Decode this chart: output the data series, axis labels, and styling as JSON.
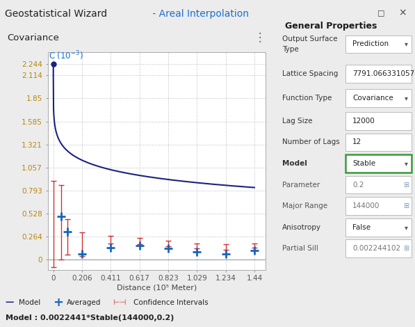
{
  "title_left": "Geostatistical Wizard",
  "title_right": " - Areal Interpolation",
  "panel_title": "Covariance",
  "xlabel": "Distance (10⁵ Meter)",
  "yticks": [
    0,
    0.264,
    0.528,
    0.793,
    1.057,
    1.321,
    1.585,
    1.85,
    2.114,
    2.244
  ],
  "xticks": [
    0,
    0.206,
    0.411,
    0.617,
    0.823,
    1.029,
    1.234,
    1.44
  ],
  "ylim": [
    -0.12,
    2.38
  ],
  "xlim": [
    -0.04,
    1.52
  ],
  "model_formula": "Model : 0.0022441*Stable(144000,0.2)",
  "partial_sill": 2.2441,
  "major_range": 1.44,
  "param": 0.2,
  "bg_color": "#ececec",
  "plot_bg_color": "#ffffff",
  "grid_color": "#b0b8c0",
  "model_color": "#1a237e",
  "averaged_color": "#1565c0",
  "ci_color": "#d32f2f",
  "title_color_left": "#222222",
  "title_color_right": "#1a6fce",
  "ytick_color": "#b8860b",
  "xtick_color": "#555555",
  "averaged_x": [
    0.055,
    0.103,
    0.206,
    0.411,
    0.617,
    0.823,
    1.029,
    1.234,
    1.44
  ],
  "averaged_y": [
    0.49,
    0.32,
    0.06,
    0.135,
    0.155,
    0.125,
    0.085,
    0.065,
    0.105
  ],
  "ci_x": [
    0.0,
    0.055,
    0.103,
    0.206,
    0.411,
    0.617,
    0.823,
    1.029,
    1.234,
    1.44
  ],
  "ci_low": [
    -0.09,
    0.0,
    0.05,
    0.04,
    0.18,
    0.175,
    0.15,
    0.125,
    0.11,
    0.135
  ],
  "ci_high": [
    0.9,
    0.85,
    0.46,
    0.31,
    0.27,
    0.245,
    0.215,
    0.185,
    0.175,
    0.18
  ],
  "right_panel_title": "General Properties",
  "right_rows": [
    {
      "label": "Output Surface\nType",
      "value": "Prediction",
      "dropdown": true,
      "highlight": false,
      "greyed": false
    },
    {
      "label": "Lattice Spacing",
      "value": "7791.066331057",
      "dropdown": false,
      "highlight": false,
      "greyed": false
    },
    {
      "label": "Function Type",
      "value": "Covariance",
      "dropdown": true,
      "highlight": false,
      "greyed": false
    },
    {
      "label": "Lag Size",
      "value": "12000",
      "dropdown": false,
      "highlight": false,
      "greyed": false
    },
    {
      "label": "Number of Lags",
      "value": "12",
      "dropdown": false,
      "highlight": false,
      "greyed": false
    },
    {
      "label": "Model",
      "value": "Stable",
      "dropdown": true,
      "highlight": true,
      "greyed": false
    },
    {
      "label": "Parameter",
      "value": "0.2",
      "dropdown": false,
      "highlight": false,
      "greyed": true,
      "has_icon": true
    },
    {
      "label": "Major Range",
      "value": "144000",
      "dropdown": false,
      "highlight": false,
      "greyed": true,
      "has_icon": true
    },
    {
      "label": "Anisotropy",
      "value": "False",
      "dropdown": true,
      "highlight": false,
      "greyed": false
    },
    {
      "label": "Partial Sill",
      "value": "0.002244102",
      "dropdown": false,
      "highlight": false,
      "greyed": true,
      "has_icon": true
    }
  ]
}
